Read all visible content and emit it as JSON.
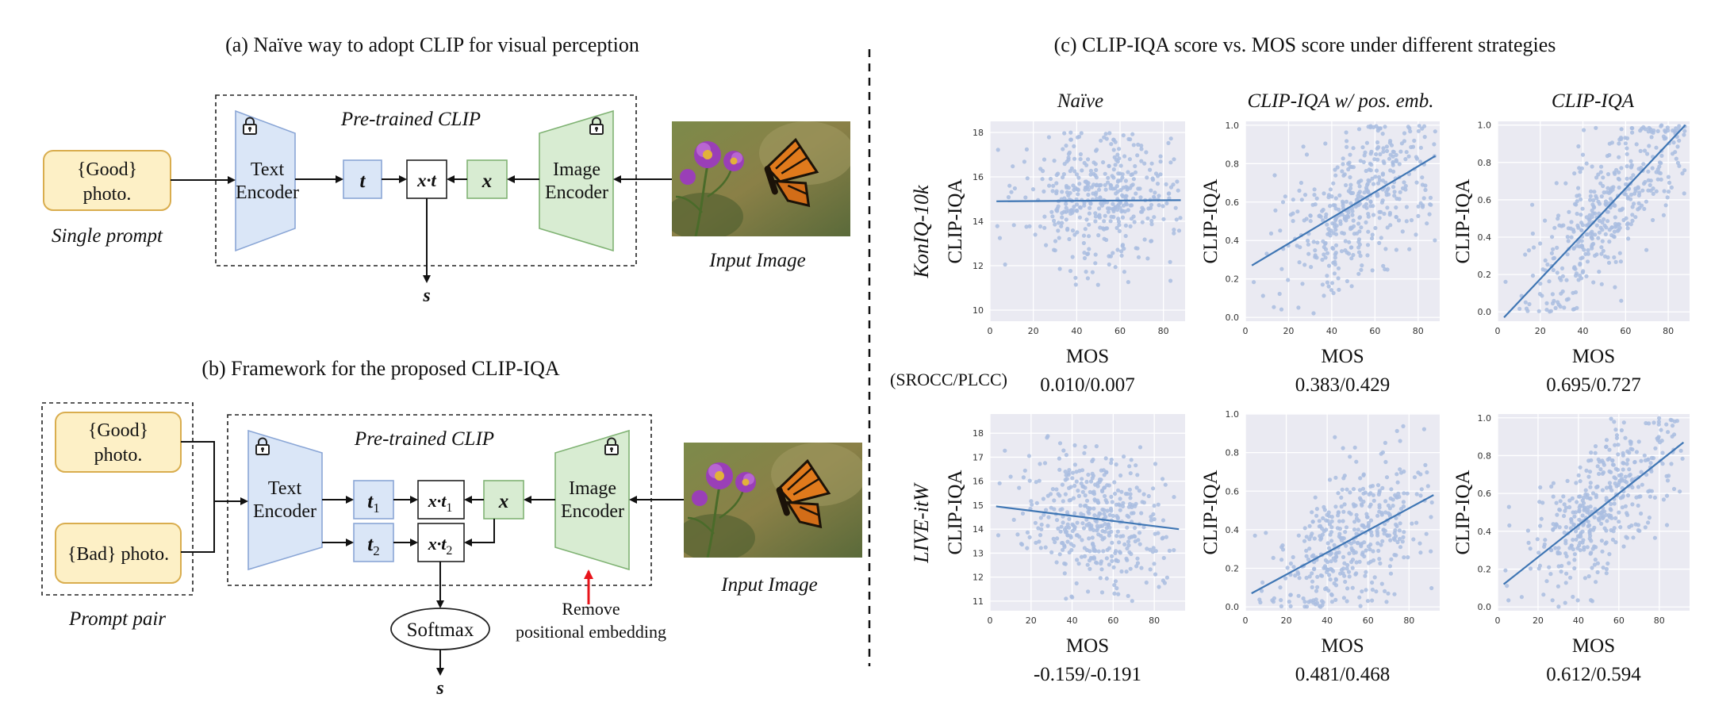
{
  "panel_a": {
    "title": "(a) Naïve way to adopt CLIP for visual perception",
    "clip_label": "Pre-trained CLIP",
    "prompt": [
      "{Good}",
      "photo."
    ],
    "prompt_caption": "Single prompt",
    "text_encoder": [
      "Text",
      "Encoder"
    ],
    "image_encoder": [
      "Image",
      "Encoder"
    ],
    "t_label": "t",
    "xt_label": "x·t",
    "x_label": "x",
    "output": "s",
    "input_caption": "Input Image"
  },
  "panel_b": {
    "title": "(b) Framework for the proposed CLIP-IQA",
    "clip_label": "Pre-trained CLIP",
    "prompt_good": [
      "{Good}",
      "photo."
    ],
    "prompt_bad": "{Bad} photo.",
    "prompt_caption": "Prompt pair",
    "text_encoder": [
      "Text",
      "Encoder"
    ],
    "image_encoder": [
      "Image",
      "Encoder"
    ],
    "t1_base": "t",
    "t1_sub": "1",
    "t2_base": "t",
    "t2_sub": "2",
    "xt1_base": "x·t",
    "xt1_sub": "1",
    "xt2_base": "x·t",
    "xt2_sub": "2",
    "x_label": "x",
    "softmax": "Softmax",
    "output": "s",
    "remove_note": [
      "Remove",
      "positional embedding"
    ],
    "input_caption": "Input Image"
  },
  "panel_c": {
    "title": "(c) CLIP-IQA score vs. MOS score under different strategies",
    "columns": [
      "Naïve",
      "CLIP-IQA w/ pos. emb.",
      "CLIP-IQA"
    ],
    "rows": [
      "KonIQ-10k",
      "LIVE-itW"
    ],
    "metric_label": "(SROCC/PLCC)",
    "highlight_color": "#e8141b",
    "point_color": "#a9bde0",
    "line_color": "#3f76b4",
    "background_color": "#eaeaf2"
  },
  "chart_data": [
    {
      "type": "scatter",
      "dataset": "KonIQ-10k",
      "strategy": "Naïve",
      "xlabel": "MOS",
      "ylabel": "CLIP-IQA",
      "xlim": [
        0,
        90
      ],
      "ylim": [
        9.5,
        18.5
      ],
      "xticks": [
        0,
        20,
        40,
        60,
        80
      ],
      "yticks": [
        10,
        12,
        14,
        16,
        18
      ],
      "regression": {
        "x": [
          3,
          88
        ],
        "y": [
          14.9,
          14.95
        ]
      },
      "score": "0.010/0.007",
      "highlight": false
    },
    {
      "type": "scatter",
      "dataset": "KonIQ-10k",
      "strategy": "CLIP-IQA w/ pos. emb.",
      "xlabel": "MOS",
      "ylabel": "CLIP-IQA",
      "xlim": [
        0,
        90
      ],
      "ylim": [
        -0.02,
        1.02
      ],
      "xticks": [
        0,
        20,
        40,
        60,
        80
      ],
      "yticks": [
        0.0,
        0.2,
        0.4,
        0.6,
        0.8,
        1.0
      ],
      "regression": {
        "x": [
          3,
          88
        ],
        "y": [
          0.27,
          0.84
        ]
      },
      "score": "0.383/0.429",
      "highlight": false
    },
    {
      "type": "scatter",
      "dataset": "KonIQ-10k",
      "strategy": "CLIP-IQA",
      "xlabel": "MOS",
      "ylabel": "CLIP-IQA",
      "xlim": [
        0,
        90
      ],
      "ylim": [
        -0.05,
        1.02
      ],
      "xticks": [
        0,
        20,
        40,
        60,
        80
      ],
      "yticks": [
        0.0,
        0.2,
        0.4,
        0.6,
        0.8,
        1.0
      ],
      "regression": {
        "x": [
          3,
          88
        ],
        "y": [
          -0.03,
          1.0
        ]
      },
      "score": "0.695/0.727",
      "highlight": true
    },
    {
      "type": "scatter",
      "dataset": "LIVE-itW",
      "strategy": "Naïve",
      "xlabel": "MOS",
      "ylabel": "CLIP-IQA",
      "xlim": [
        0,
        95
      ],
      "ylim": [
        10.6,
        18.8
      ],
      "xticks": [
        0,
        20,
        40,
        60,
        80
      ],
      "yticks": [
        11,
        12,
        13,
        14,
        15,
        16,
        17,
        18
      ],
      "regression": {
        "x": [
          3,
          92
        ],
        "y": [
          14.95,
          14.0
        ]
      },
      "score": "-0.159/-0.191",
      "highlight": false
    },
    {
      "type": "scatter",
      "dataset": "LIVE-itW",
      "strategy": "CLIP-IQA w/ pos. emb.",
      "xlabel": "MOS",
      "ylabel": "CLIP-IQA",
      "xlim": [
        0,
        95
      ],
      "ylim": [
        -0.02,
        1.0
      ],
      "xticks": [
        0,
        20,
        40,
        60,
        80
      ],
      "yticks": [
        0.0,
        0.2,
        0.4,
        0.6,
        0.8,
        1.0
      ],
      "regression": {
        "x": [
          3,
          92
        ],
        "y": [
          0.07,
          0.58
        ]
      },
      "score": "0.481/0.468",
      "highlight": false
    },
    {
      "type": "scatter",
      "dataset": "LIVE-itW",
      "strategy": "CLIP-IQA",
      "xlabel": "MOS",
      "ylabel": "CLIP-IQA",
      "xlim": [
        0,
        95
      ],
      "ylim": [
        -0.02,
        1.02
      ],
      "xticks": [
        0,
        20,
        40,
        60,
        80
      ],
      "yticks": [
        0.0,
        0.2,
        0.4,
        0.6,
        0.8,
        1.0
      ],
      "regression": {
        "x": [
          3,
          92
        ],
        "y": [
          0.12,
          0.87
        ]
      },
      "score": "0.612/0.594",
      "highlight": true
    }
  ]
}
